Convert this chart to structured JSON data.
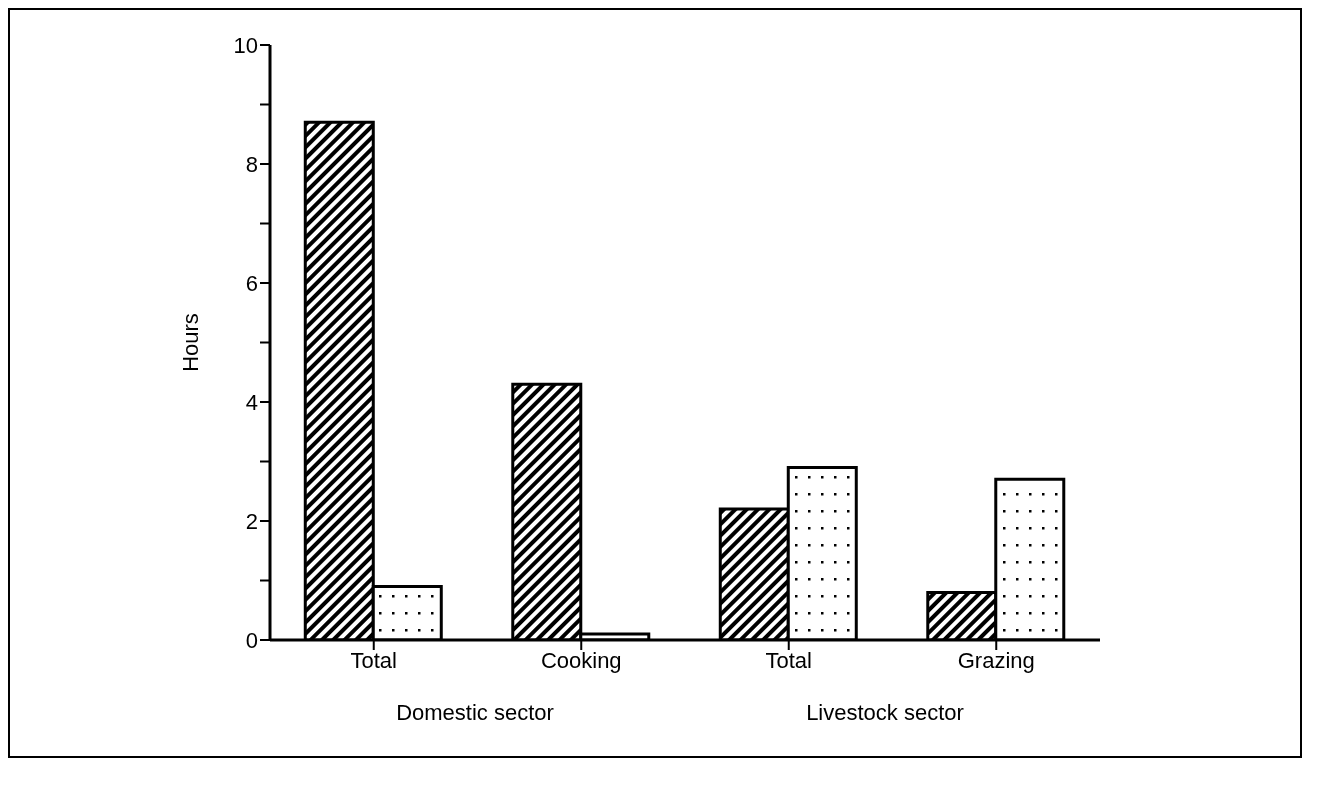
{
  "chart_data": {
    "type": "bar",
    "ylabel": "Hours",
    "categories": [
      "Total",
      "Cooking",
      "Total",
      "Grazing"
    ],
    "series": [
      {
        "color": "#000000",
        "values": [
          8.7,
          4.3,
          2.2,
          0.8
        ]
      },
      {
        "color": "#000000",
        "values": [
          0.9,
          0.1,
          2.9,
          2.7
        ]
      }
    ],
    "ylim": [
      0,
      10
    ],
    "yticks": [
      0,
      {
        "value": 1,
        "label": null
      },
      2,
      {
        "value": 3,
        "label": null
      },
      4,
      {
        "value": 5,
        "label": null
      },
      6,
      {
        "value": 7,
        "label": null
      },
      8,
      {
        "value": 9,
        "label": null
      },
      10
    ],
    "grid": false,
    "annotations": [
      "Domestic sector",
      "Livestock sector"
    ]
  }
}
